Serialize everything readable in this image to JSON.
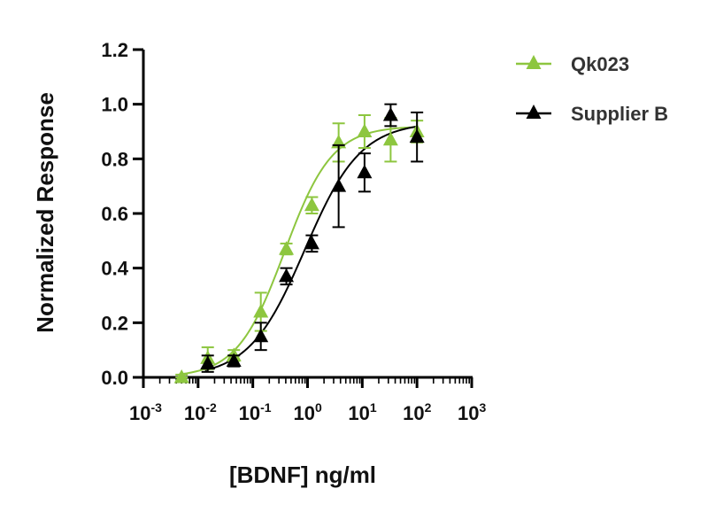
{
  "chart_data": {
    "type": "scatter",
    "title": "",
    "xlabel": "[BDNF] ng/ml",
    "ylabel": "Normalized Response",
    "x_scale": "log10",
    "xlim_exp": [
      -3,
      3
    ],
    "x_tick_base": "10",
    "x_tick_exponents": [
      "-3",
      "-2",
      "-1",
      "0",
      "1",
      "2",
      "3"
    ],
    "ylim": [
      0,
      1.2
    ],
    "y_ticks": [
      "0.0",
      "0.2",
      "0.4",
      "0.6",
      "0.8",
      "1.0",
      "1.2"
    ],
    "grid": false,
    "legend_position": "top-right",
    "series": [
      {
        "name": "Qk023",
        "color": "#8dc63f",
        "marker": "triangle",
        "fit": "4PL sigmoid",
        "fit_params": {
          "bottom": 0.0,
          "top": 0.92,
          "log_ec50": -0.42,
          "hill": 1.0
        },
        "points": [
          {
            "x": 0.005,
            "y": 0.0,
            "err": 0.01
          },
          {
            "x": 0.015,
            "y": 0.07,
            "err": 0.04
          },
          {
            "x": 0.045,
            "y": 0.08,
            "err": 0.02
          },
          {
            "x": 0.14,
            "y": 0.24,
            "err": 0.07
          },
          {
            "x": 0.41,
            "y": 0.47,
            "err": 0.02
          },
          {
            "x": 1.2,
            "y": 0.63,
            "err": 0.03
          },
          {
            "x": 3.7,
            "y": 0.86,
            "err": 0.07
          },
          {
            "x": 11,
            "y": 0.9,
            "err": 0.06
          },
          {
            "x": 33,
            "y": 0.87,
            "err": 0.08
          },
          {
            "x": 100,
            "y": 0.9,
            "err": 0.04
          }
        ]
      },
      {
        "name": "Supplier B",
        "color": "#000000",
        "marker": "triangle",
        "fit": "4PL sigmoid",
        "fit_params": {
          "bottom": 0.0,
          "top": 0.935,
          "log_ec50": -0.05,
          "hill": 0.85
        },
        "points": [
          {
            "x": 0.015,
            "y": 0.05,
            "err": 0.03
          },
          {
            "x": 0.045,
            "y": 0.06,
            "err": 0.02
          },
          {
            "x": 0.14,
            "y": 0.15,
            "err": 0.05
          },
          {
            "x": 0.41,
            "y": 0.37,
            "err": 0.03
          },
          {
            "x": 1.2,
            "y": 0.49,
            "err": 0.03
          },
          {
            "x": 3.7,
            "y": 0.7,
            "err": 0.15
          },
          {
            "x": 11,
            "y": 0.75,
            "err": 0.07
          },
          {
            "x": 33,
            "y": 0.96,
            "err": 0.04
          },
          {
            "x": 100,
            "y": 0.88,
            "err": 0.09
          }
        ]
      }
    ]
  }
}
